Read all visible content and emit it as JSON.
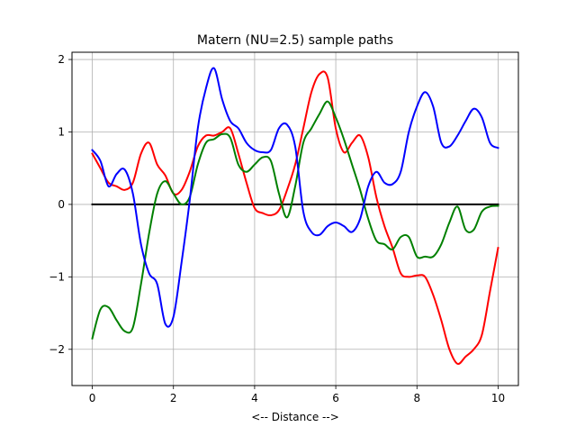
{
  "chart_data": {
    "type": "line",
    "title": "Matern (NU=2.5) sample paths",
    "xlabel": "<-- Distance -->",
    "ylabel": "",
    "xlim": [
      -0.5,
      10.5
    ],
    "ylim": [
      -2.5,
      2.1
    ],
    "xticks": [
      0,
      2,
      4,
      6,
      8,
      10
    ],
    "xtick_labels": [
      "0",
      "2",
      "4",
      "6",
      "8",
      "10"
    ],
    "yticks": [
      -2,
      -1,
      0,
      1,
      2
    ],
    "ytick_labels": [
      "−2",
      "−1",
      "0",
      "1",
      "2"
    ],
    "grid": true,
    "legend": "none",
    "series": [
      {
        "color": "#000000",
        "x": [
          0,
          10
        ],
        "y": [
          0,
          0
        ]
      },
      {
        "color": "#ff0000",
        "x": [
          0,
          0.2,
          0.4,
          0.6,
          0.8,
          1.0,
          1.2,
          1.4,
          1.6,
          1.8,
          2.0,
          2.2,
          2.4,
          2.6,
          2.8,
          3.0,
          3.2,
          3.4,
          3.6,
          3.8,
          4.0,
          4.2,
          4.4,
          4.6,
          4.8,
          5.0,
          5.2,
          5.4,
          5.6,
          5.8,
          6.0,
          6.2,
          6.4,
          6.6,
          6.8,
          7.0,
          7.2,
          7.4,
          7.6,
          7.8,
          8.0,
          8.2,
          8.4,
          8.6,
          8.8,
          9.0,
          9.2,
          9.4,
          9.6,
          9.8,
          10.0
        ],
        "y": [
          0.7,
          0.5,
          0.3,
          0.25,
          0.2,
          0.3,
          0.7,
          0.85,
          0.55,
          0.4,
          0.15,
          0.2,
          0.45,
          0.8,
          0.95,
          0.95,
          1.0,
          1.05,
          0.7,
          0.3,
          -0.05,
          -0.12,
          -0.15,
          -0.08,
          0.2,
          0.55,
          1.05,
          1.55,
          1.8,
          1.75,
          1.05,
          0.72,
          0.85,
          0.95,
          0.65,
          0.1,
          -0.3,
          -0.6,
          -0.95,
          -1.0,
          -0.98,
          -1.0,
          -1.25,
          -1.6,
          -2.0,
          -2.2,
          -2.1,
          -2.0,
          -1.8,
          -1.2,
          -0.6
        ]
      },
      {
        "color": "#008000",
        "x": [
          0,
          0.2,
          0.4,
          0.6,
          0.8,
          1.0,
          1.2,
          1.4,
          1.6,
          1.8,
          2.0,
          2.2,
          2.4,
          2.6,
          2.8,
          3.0,
          3.2,
          3.4,
          3.6,
          3.8,
          4.0,
          4.2,
          4.4,
          4.6,
          4.8,
          5.0,
          5.2,
          5.4,
          5.6,
          5.8,
          6.0,
          6.2,
          6.4,
          6.6,
          6.8,
          7.0,
          7.2,
          7.4,
          7.6,
          7.8,
          8.0,
          8.2,
          8.4,
          8.6,
          8.8,
          9.0,
          9.2,
          9.4,
          9.6,
          9.8,
          10.0
        ],
        "y": [
          -1.85,
          -1.45,
          -1.42,
          -1.6,
          -1.75,
          -1.7,
          -1.1,
          -0.4,
          0.15,
          0.32,
          0.15,
          0.0,
          0.1,
          0.55,
          0.85,
          0.9,
          0.97,
          0.92,
          0.55,
          0.45,
          0.55,
          0.65,
          0.6,
          0.15,
          -0.18,
          0.25,
          0.85,
          1.05,
          1.25,
          1.42,
          1.2,
          0.9,
          0.55,
          0.2,
          -0.2,
          -0.5,
          -0.55,
          -0.62,
          -0.45,
          -0.45,
          -0.72,
          -0.72,
          -0.72,
          -0.55,
          -0.25,
          -0.03,
          -0.35,
          -0.35,
          -0.1,
          -0.03,
          -0.02
        ]
      },
      {
        "color": "#0000ff",
        "x": [
          0,
          0.2,
          0.4,
          0.6,
          0.8,
          1.0,
          1.2,
          1.4,
          1.6,
          1.8,
          2.0,
          2.2,
          2.4,
          2.6,
          2.8,
          3.0,
          3.2,
          3.4,
          3.6,
          3.8,
          4.0,
          4.2,
          4.4,
          4.6,
          4.8,
          5.0,
          5.2,
          5.4,
          5.6,
          5.8,
          6.0,
          6.2,
          6.4,
          6.6,
          6.8,
          7.0,
          7.2,
          7.4,
          7.6,
          7.8,
          8.0,
          8.2,
          8.4,
          8.6,
          8.8,
          9.0,
          9.2,
          9.4,
          9.6,
          9.8,
          10.0
        ],
        "y": [
          0.75,
          0.6,
          0.25,
          0.42,
          0.48,
          0.15,
          -0.55,
          -0.95,
          -1.1,
          -1.65,
          -1.55,
          -0.8,
          0.05,
          1.05,
          1.6,
          1.88,
          1.45,
          1.15,
          1.05,
          0.85,
          0.75,
          0.72,
          0.75,
          1.05,
          1.1,
          0.8,
          -0.1,
          -0.38,
          -0.42,
          -0.3,
          -0.25,
          -0.3,
          -0.38,
          -0.2,
          0.25,
          0.45,
          0.3,
          0.28,
          0.45,
          1.0,
          1.35,
          1.55,
          1.35,
          0.85,
          0.8,
          0.95,
          1.15,
          1.32,
          1.2,
          0.85,
          0.78
        ]
      }
    ]
  }
}
